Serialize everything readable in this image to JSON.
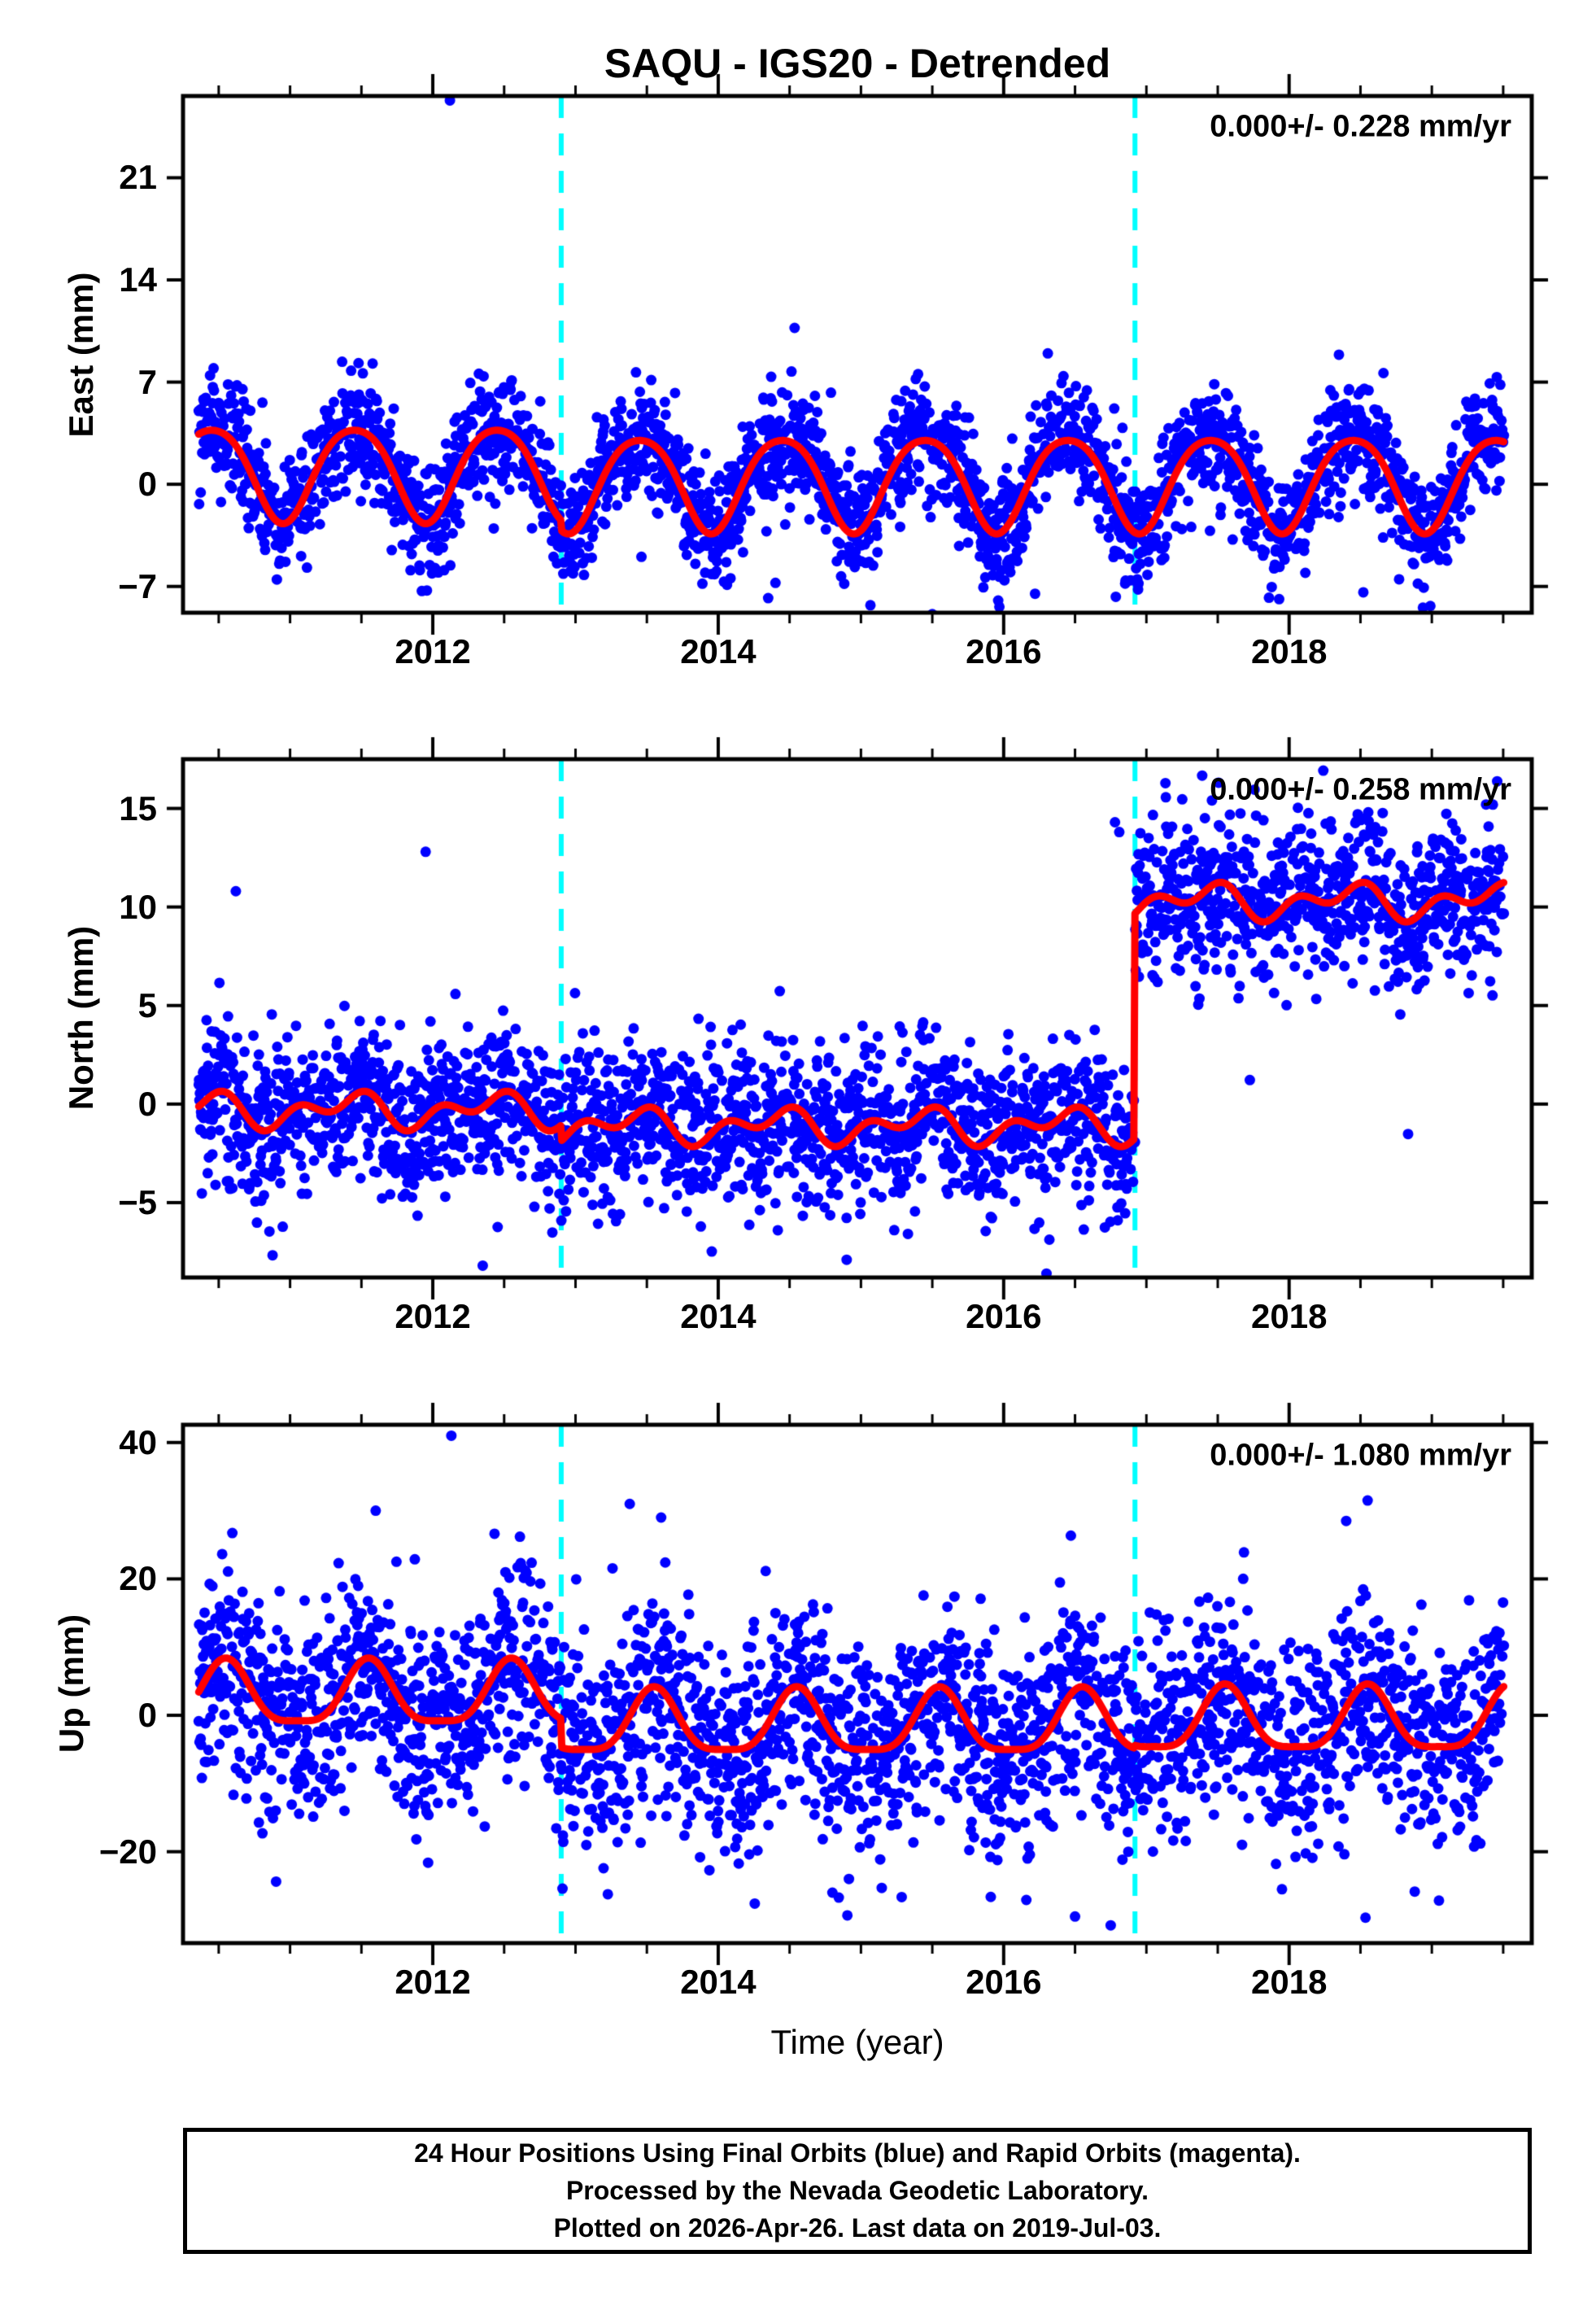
{
  "title": "SAQU - IGS20 - Detrended",
  "x_axis": {
    "label": "Time (year)",
    "major_ticks": [
      2012,
      2014,
      2016,
      2018
    ],
    "minor_tick_interval": 0.5,
    "range": [
      2010.25,
      2019.7
    ]
  },
  "caption": {
    "line1": "24 Hour Positions Using Final Orbits (blue) and Rapid Orbits (magenta).",
    "line2": "Processed by the Nevada Geodetic Laboratory.",
    "line3": "Plotted on 2026-Apr-26. Last data on 2019-Jul-03."
  },
  "colors": {
    "points": "#0000ff",
    "model_curve": "#ff0000",
    "event_line": "#00ffff",
    "frame": "#000000",
    "background": "#ffffff"
  },
  "chart_data": {
    "type": "scatter",
    "station": "SAQU",
    "reference_frame": "IGS20",
    "processing": "Detrended",
    "x_range": [
      2010.25,
      2019.7
    ],
    "data_span_years": [
      2010.36,
      2019.505
    ],
    "event_lines_year": [
      2012.9,
      2016.92
    ],
    "x_major_ticks": [
      2012,
      2014,
      2016,
      2018
    ],
    "x_minor_tick_interval": 0.5,
    "seed": 20190703,
    "points_keep_probability": 0.82,
    "point_radius_px": 6.5,
    "panels": [
      {
        "id": "east",
        "ylabel": "East (mm)",
        "annotation": "0.000+/- 0.228 mm/yr",
        "rate_mm_per_yr": "0.000",
        "rate_sigma_mm_per_yr": "0.228",
        "ylim": [
          -8.8,
          26.6
        ],
        "yticks": [
          21,
          14,
          7,
          0,
          -7
        ],
        "model": {
          "segment_means": [
            0.9,
            0.2,
            0.2
          ],
          "annual_amp": 3.2,
          "annual_peak_phase": 0.45,
          "semiannual_amp": 0.4,
          "semiannual_peak_phase": 0.2
        },
        "noise_sigma": 1.9,
        "outliers": [
          [
            2012.12,
            26.3
          ],
          [
            2015.5,
            -8.9
          ],
          [
            2015.97,
            -8.4
          ],
          [
            2016.22,
            -7.5
          ],
          [
            2014.35,
            -7.8
          ],
          [
            2018.52,
            -7.4
          ]
        ]
      },
      {
        "id": "north",
        "ylabel": "North (mm)",
        "annotation": "0.000+/- 0.258 mm/yr",
        "rate_mm_per_yr": "0.000",
        "rate_sigma_mm_per_yr": "0.258",
        "ylim": [
          -8.8,
          17.5
        ],
        "yticks": [
          15,
          10,
          5,
          0,
          -5
        ],
        "model": {
          "segment_means": [
            -0.3,
            -1.1,
            10.3
          ],
          "annual_amp": 0.6,
          "annual_peak_phase": 0.4,
          "semiannual_amp": 0.55,
          "semiannual_peak_phase": 0.05
        },
        "noise_sigma": 2.0,
        "outliers": [
          [
            2010.62,
            10.8
          ],
          [
            2011.95,
            12.8
          ],
          [
            2016.78,
            14.3
          ],
          [
            2016.81,
            13.8
          ],
          [
            2013.75,
            -9.3
          ],
          [
            2012.35,
            -8.2
          ],
          [
            2016.3,
            -8.6
          ],
          [
            2014.9,
            -7.9
          ],
          [
            2019.38,
            15.2
          ],
          [
            2017.82,
            14.4
          ]
        ]
      },
      {
        "id": "up",
        "ylabel": "Up (mm)",
        "annotation": "0.000+/- 1.080 mm/yr",
        "rate_mm_per_yr": "0.000",
        "rate_sigma_mm_per_yr": "1.080",
        "ylim": [
          -33.4,
          42.6
        ],
        "yticks": [
          40,
          20,
          0,
          -20
        ],
        "model": {
          "segment_means": [
            2.6,
            -1.6,
            -1.2
          ],
          "annual_amp": 4.6,
          "annual_peak_phase": 0.55,
          "semiannual_amp": 1.2,
          "semiannual_peak_phase": 0.05
        },
        "noise_sigma": 7.6,
        "outliers": [
          [
            2012.13,
            41.0
          ],
          [
            2013.38,
            31.0
          ],
          [
            2011.6,
            30.0
          ],
          [
            2013.6,
            29.0
          ],
          [
            2018.55,
            31.5
          ],
          [
            2018.4,
            28.5
          ],
          [
            2016.5,
            -29.5
          ],
          [
            2016.75,
            -30.8
          ],
          [
            2014.8,
            -26.0
          ],
          [
            2017.95,
            -25.5
          ]
        ]
      }
    ]
  }
}
